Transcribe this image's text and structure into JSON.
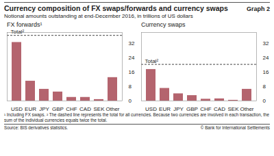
{
  "title": "Currency composition of FX swaps/forwards and currency swaps",
  "graph_label": "Graph 2",
  "subtitle": "Notional amounts outstanding at end-December 2016, in trillions of US dollars",
  "footnotes": [
    "¹ Including FX swaps.",
    "² The dashed line represents the total for all currencies. Because two currencies are involved in each transaction, the sum of the individual currencies equals twice the total."
  ],
  "source": "Source: BIS derivatives statistics.",
  "copyright": "© Bank for International Settlements",
  "chart_data": [
    {
      "type": "bar",
      "title": "FX forwards¹",
      "categories": [
        "USD",
        "EUR",
        "JPY",
        "GBP",
        "CHF",
        "CAD",
        "SEK",
        "Other"
      ],
      "values": [
        32.5,
        11,
        6.5,
        5,
        2,
        2,
        0.8,
        13
      ],
      "color": "#b4646e",
      "ylim": [
        0,
        38
      ],
      "yticks": [
        0,
        8,
        16,
        24,
        32
      ],
      "grid": false,
      "reference_line": {
        "label": "Total²",
        "value": 36.4,
        "line_style": "dashed"
      }
    },
    {
      "type": "bar",
      "title": "Currency swaps",
      "categories": [
        "USD",
        "EUR",
        "JPY",
        "GBP",
        "CHF",
        "CAD",
        "SEK",
        "Other"
      ],
      "values": [
        17.5,
        7,
        4,
        3,
        1,
        1.2,
        0.4,
        6.5
      ],
      "color": "#b4646e",
      "ylim": [
        0,
        38
      ],
      "yticks": [
        0,
        8,
        16,
        24,
        32
      ],
      "grid": false,
      "reference_line": {
        "label": "Total²",
        "value": 20.3,
        "line_style": "dashed"
      }
    }
  ]
}
